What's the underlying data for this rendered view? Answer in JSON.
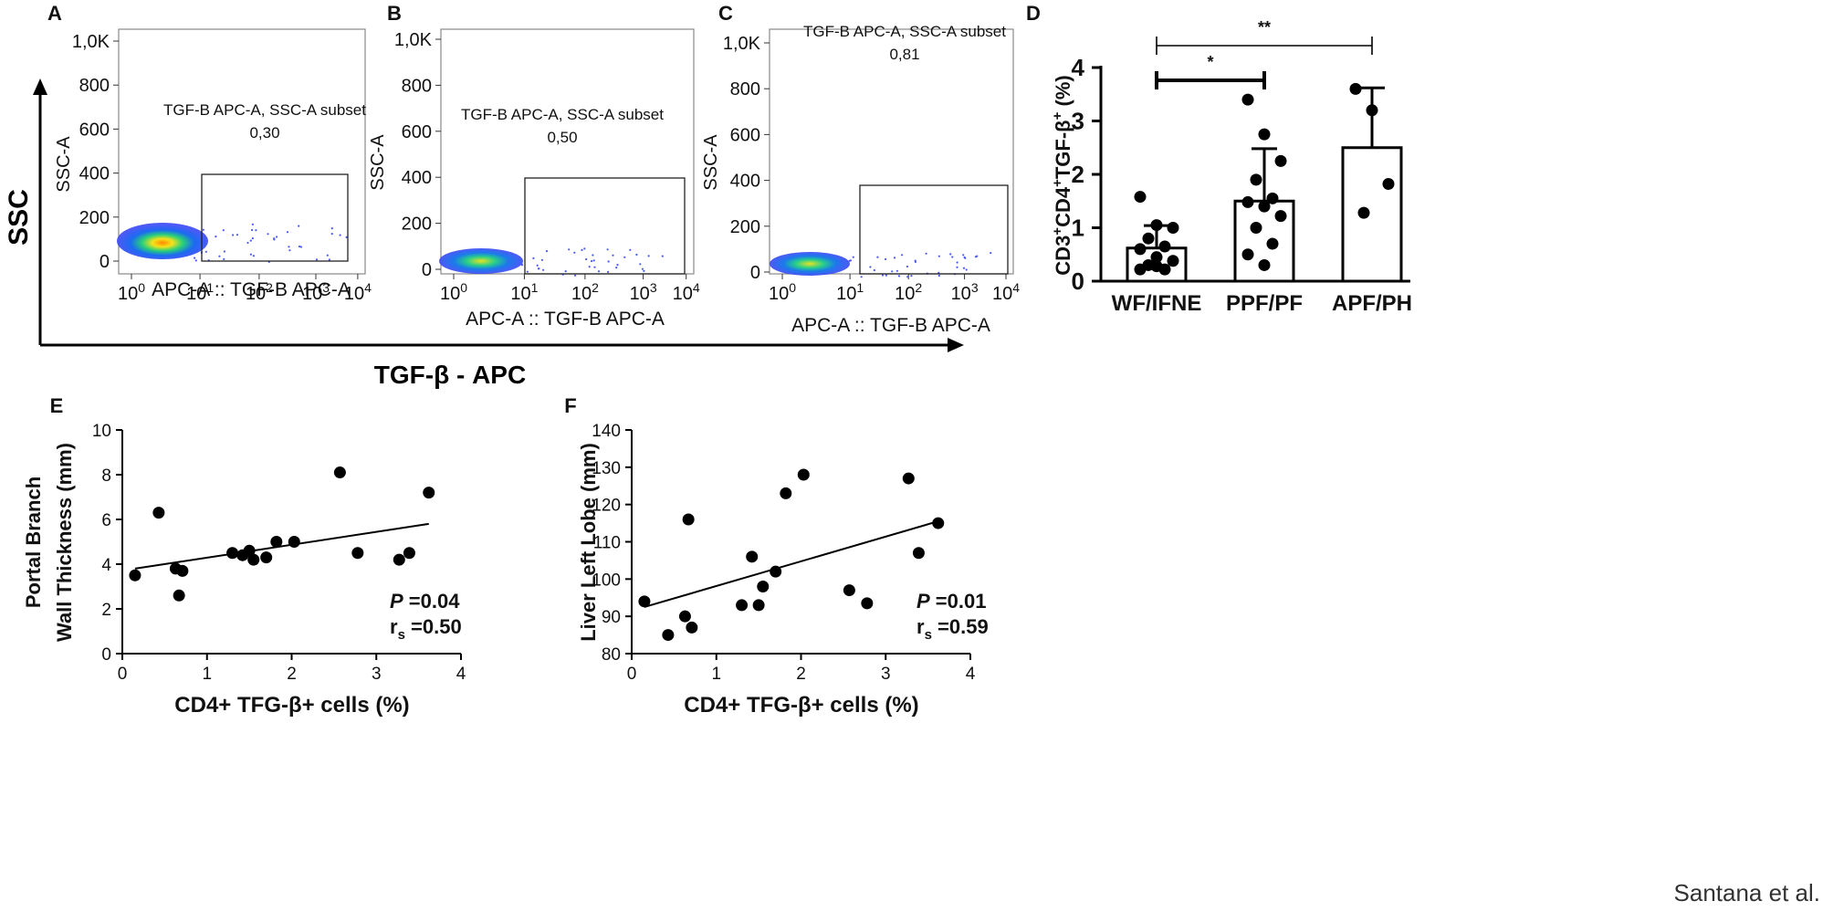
{
  "figure": {
    "outer_axis_y_label": "SSC",
    "outer_axis_x_label": "TGF-β - APC",
    "credit": "Santana et al."
  },
  "chart_data": [
    {
      "panel": "A",
      "type": "scatter",
      "subtype": "flow-cytometry-density",
      "ylabel": "SSC-A",
      "xlabel": "APC-A :: TGF-B APC-A",
      "yticks": [
        "0",
        "200",
        "400",
        "600",
        "800",
        "1,0K"
      ],
      "xticks": [
        "10",
        "10",
        "10",
        "10",
        "10"
      ],
      "xtick_exps": [
        "0",
        "1",
        "2",
        "3",
        "4"
      ],
      "gate_label": "TGF-B APC-A, SSC-A subset",
      "gate_value": "0,30"
    },
    {
      "panel": "B",
      "type": "scatter",
      "subtype": "flow-cytometry-density",
      "ylabel": "SSC-A",
      "xlabel": "APC-A :: TGF-B APC-A",
      "yticks": [
        "0",
        "200",
        "400",
        "600",
        "800",
        "1,0K"
      ],
      "xticks": [
        "10",
        "10",
        "10",
        "10",
        "10"
      ],
      "xtick_exps": [
        "0",
        "1",
        "2",
        "3",
        "4"
      ],
      "gate_label": "TGF-B APC-A, SSC-A subset",
      "gate_value": "0,50"
    },
    {
      "panel": "C",
      "type": "scatter",
      "subtype": "flow-cytometry-density",
      "ylabel": "SSC-A",
      "xlabel": "APC-A :: TGF-B APC-A",
      "yticks": [
        "0",
        "200",
        "400",
        "600",
        "800",
        "1,0K"
      ],
      "xticks": [
        "10",
        "10",
        "10",
        "10",
        "10"
      ],
      "xtick_exps": [
        "0",
        "1",
        "2",
        "3",
        "4"
      ],
      "gate_label": "TGF-B APC-A, SSC-A subset",
      "gate_value": "0,81"
    },
    {
      "panel": "D",
      "type": "bar",
      "ylabel_parts": [
        "CD3",
        "+",
        "CD4",
        "+",
        "TGF-β",
        "+",
        " (%)"
      ],
      "ylim": [
        0,
        4
      ],
      "yticks": [
        "0",
        "1",
        "2",
        "3",
        "4"
      ],
      "categories": [
        "WF/IFNE",
        "PPF/PF",
        "APF/PH"
      ],
      "means": [
        0.62,
        1.5,
        2.5
      ],
      "sd": [
        0.42,
        0.98,
        1.12
      ],
      "points": [
        [
          1.58,
          1.05,
          1.0,
          0.8,
          0.65,
          0.6,
          0.45,
          0.38,
          0.3,
          0.22,
          0.22,
          0.28
        ],
        [
          3.4,
          2.75,
          2.25,
          1.9,
          1.55,
          1.48,
          1.4,
          1.22,
          1.0,
          0.7,
          0.5,
          0.3
        ],
        [
          3.6,
          3.2,
          1.82,
          1.28
        ]
      ],
      "significance": [
        {
          "from": 0,
          "to": 1,
          "label": "*"
        },
        {
          "from": 0,
          "to": 2,
          "label": "**"
        }
      ]
    },
    {
      "panel": "E",
      "type": "scatter",
      "xlabel": "CD4+ TFG-β+ cells (%)",
      "ylabel_lines": [
        "Portal Branch",
        "Wall Thickness (mm)"
      ],
      "xlim": [
        0,
        4
      ],
      "ylim": [
        0,
        10
      ],
      "xticks": [
        "0",
        "1",
        "2",
        "3",
        "4"
      ],
      "yticks": [
        "0",
        "2",
        "4",
        "6",
        "8",
        "10"
      ],
      "x": [
        0.15,
        0.43,
        0.63,
        0.67,
        0.71,
        1.3,
        1.42,
        1.5,
        1.55,
        1.7,
        1.82,
        2.03,
        2.57,
        2.78,
        3.27,
        3.39,
        3.62
      ],
      "y": [
        3.5,
        6.3,
        3.8,
        2.6,
        3.7,
        4.5,
        4.4,
        4.6,
        4.2,
        4.3,
        5.0,
        5.0,
        8.1,
        4.5,
        4.2,
        4.5,
        7.2
      ],
      "fit": {
        "x": [
          0.15,
          3.62
        ],
        "y": [
          3.8,
          5.8
        ]
      },
      "stat_p": "=0.04",
      "stat_r_sub": "s",
      "stat_r": "=0.50"
    },
    {
      "panel": "F",
      "type": "scatter",
      "xlabel": "CD4+ TFG-β+ cells (%)",
      "ylabel_lines": [
        "Liver Left Lobe (mm)"
      ],
      "xlim": [
        0,
        4
      ],
      "ylim": [
        80,
        140
      ],
      "xticks": [
        "0",
        "1",
        "2",
        "3",
        "4"
      ],
      "yticks": [
        "80",
        "90",
        "100",
        "110",
        "120",
        "130",
        "140"
      ],
      "x": [
        0.15,
        0.43,
        0.63,
        0.67,
        0.71,
        1.3,
        1.42,
        1.5,
        1.55,
        1.7,
        1.82,
        2.03,
        2.57,
        2.78,
        3.27,
        3.39,
        3.62
      ],
      "y": [
        94,
        85,
        90,
        116,
        87,
        93,
        106,
        93,
        98,
        102,
        123,
        128,
        97,
        93.5,
        127,
        107,
        115
      ],
      "fit": {
        "x": [
          0.15,
          3.62
        ],
        "y": [
          92.5,
          115.5
        ]
      },
      "stat_p": "=0.01",
      "stat_r_sub": "s",
      "stat_r": "=0.59"
    }
  ]
}
